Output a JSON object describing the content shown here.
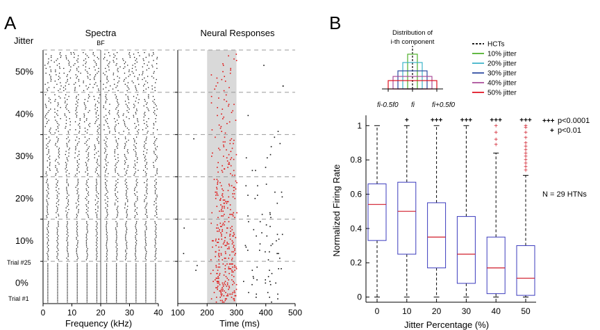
{
  "panels": {
    "a": "A",
    "b": "B"
  },
  "panel_a": {
    "jitter_header": "Jitter",
    "jitter_labels": [
      "50%",
      "40%",
      "30%",
      "20%",
      "10%",
      "0%"
    ],
    "trial_top": "Trial #25",
    "trial_bottom": "Trial #1",
    "spectra_title": "Spectra",
    "bf_label": "BF",
    "spectra_xlabel": "Frequency (kHz)",
    "spectra_xticks": [
      "0",
      "10",
      "20",
      "30",
      "40"
    ],
    "responses_title": "Neural Responses",
    "responses_xlabel": "Time (ms)",
    "responses_xticks": [
      "100",
      "200",
      "300",
      "400",
      "500"
    ]
  },
  "inset": {
    "title": [
      "Distribution of",
      "i-th component"
    ],
    "xlabels": [
      "fi-0.5f0",
      "fi",
      "fi+0.5f0"
    ],
    "legend": [
      {
        "label": "HCTs",
        "color": "#000000",
        "dashed": true
      },
      {
        "label": "10% jitter",
        "color": "#4daf2a",
        "dashed": false
      },
      {
        "label": "20% jitter",
        "color": "#3bb3c8",
        "dashed": false
      },
      {
        "label": "30% jitter",
        "color": "#2b4aa0",
        "dashed": false
      },
      {
        "label": "40% jitter",
        "color": "#a94d9a",
        "dashed": false
      },
      {
        "label": "50% jitter",
        "color": "#e01020",
        "dashed": false
      }
    ]
  },
  "significance": {
    "strong": {
      "marker": "+++",
      "label": "p<0.0001"
    },
    "weak": {
      "marker": "+",
      "label": "p<0.01"
    },
    "per_group": [
      "",
      "+",
      "+++",
      "+++",
      "+++",
      "+++"
    ]
  },
  "n_label": "N = 29 HTNs",
  "chart_data": {
    "type": "box",
    "xlabel": "Jitter Percentage (%)",
    "ylabel": "Normalized Firing Rate",
    "categories": [
      "0",
      "10",
      "20",
      "30",
      "40",
      "50"
    ],
    "yticks": [
      "0",
      "0.2",
      "0.4",
      "0.6",
      "0.8",
      "1"
    ],
    "ylim": [
      -0.03,
      1.06
    ],
    "boxes": [
      {
        "whisker_low": 0,
        "q1": 0.33,
        "median": 0.54,
        "q3": 0.66,
        "whisker_high": 1.0,
        "outliers": []
      },
      {
        "whisker_low": 0,
        "q1": 0.25,
        "median": 0.5,
        "q3": 0.67,
        "whisker_high": 1.0,
        "outliers": []
      },
      {
        "whisker_low": 0,
        "q1": 0.17,
        "median": 0.35,
        "q3": 0.55,
        "whisker_high": 1.0,
        "outliers": []
      },
      {
        "whisker_low": 0,
        "q1": 0.08,
        "median": 0.25,
        "q3": 0.47,
        "whisker_high": 1.0,
        "outliers": []
      },
      {
        "whisker_low": 0,
        "q1": 0.02,
        "median": 0.17,
        "q3": 0.35,
        "whisker_high": 0.84,
        "outliers": [
          0.89,
          0.92,
          0.96,
          1.0
        ]
      },
      {
        "whisker_low": 0,
        "q1": 0.01,
        "median": 0.11,
        "q3": 0.3,
        "whisker_high": 0.71,
        "outliers": [
          0.74,
          0.76,
          0.78,
          0.8,
          0.82,
          0.84,
          0.86,
          0.88,
          0.9,
          0.93,
          0.96,
          0.99,
          1.0
        ]
      }
    ],
    "colors": {
      "box": "#3b3bbd",
      "median": "#d01c2a",
      "outlier": "#d01c2a",
      "whisker": "#000000"
    }
  }
}
